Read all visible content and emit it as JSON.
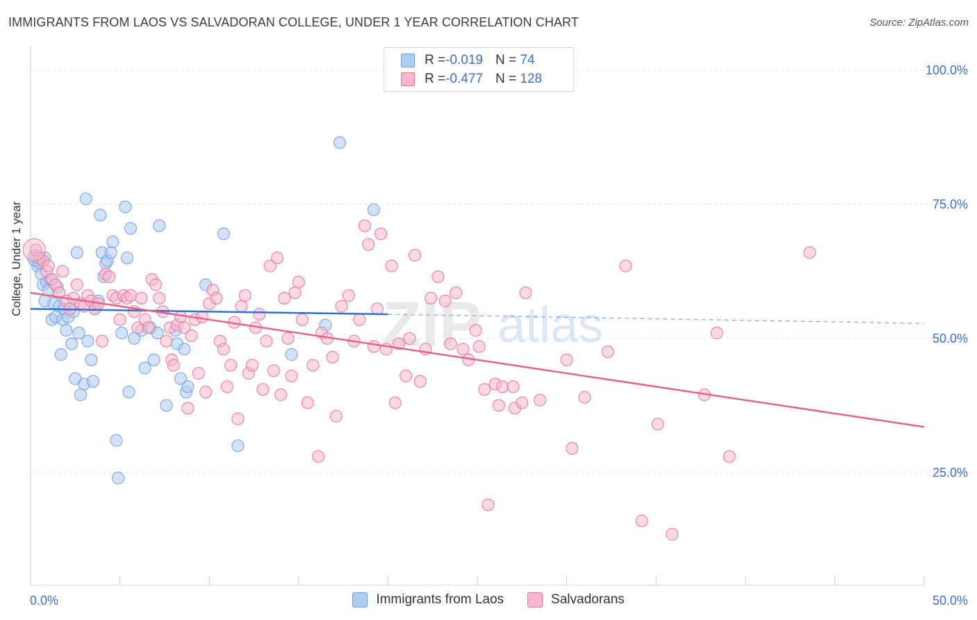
{
  "header": {
    "title": "IMMIGRANTS FROM LAOS VS SALVADORAN COLLEGE, UNDER 1 YEAR CORRELATION CHART",
    "source": "Source: ZipAtlas.com"
  },
  "watermark": {
    "zip": "ZIP",
    "atlas": "atlas"
  },
  "legend": {
    "rows": [
      {
        "r_label": "R = ",
        "r_value": "-0.019",
        "n_label": "N = ",
        "n_value": "74",
        "color": "#aecbf2"
      },
      {
        "r_label": "R = ",
        "r_value": "-0.477",
        "n_label": "N = ",
        "n_value": "128",
        "color": "#f7b8cb"
      }
    ]
  },
  "bottom_legend": [
    {
      "label": "Immigrants from Laos",
      "color": "#aecbf2"
    },
    {
      "label": "Salvadorans",
      "color": "#f7b8cb"
    }
  ],
  "chart_data": {
    "type": "scatter",
    "title": "IMMIGRANTS FROM LAOS VS SALVADORAN COLLEGE, UNDER 1 YEAR CORRELATION CHART",
    "xlabel": "",
    "ylabel": "College, Under 1 year",
    "xlim": [
      0,
      50
    ],
    "ylim": [
      4,
      104
    ],
    "x_tick_labels": [
      "0.0%",
      "50.0%"
    ],
    "y_ticks": [
      25,
      50,
      75,
      100
    ],
    "y_tick_labels": [
      "25.0%",
      "50.0%",
      "75.0%",
      "100.0%"
    ],
    "grid": true,
    "legend_position": "top-center",
    "series": [
      {
        "name": "Immigrants from Laos",
        "color": "#6d9fe0",
        "fill": "#aecbf2",
        "r": -0.019,
        "n": 74,
        "trend": {
          "x0": 0,
          "y0": 55.5,
          "x1": 20,
          "y1": 54.5,
          "dashed_to_x": 50,
          "dashed_to_y": 52.8
        },
        "points": [
          [
            0.3,
            65
          ],
          [
            0.4,
            63.5
          ],
          [
            0.5,
            64
          ],
          [
            0.6,
            62
          ],
          [
            0.7,
            60
          ],
          [
            0.8,
            57
          ],
          [
            0.8,
            65
          ],
          [
            0.9,
            60.5
          ],
          [
            1.0,
            59
          ],
          [
            1.1,
            61
          ],
          [
            1.2,
            53.5
          ],
          [
            1.3,
            56.5
          ],
          [
            1.4,
            54
          ],
          [
            1.5,
            59.5
          ],
          [
            1.6,
            56
          ],
          [
            1.7,
            47
          ],
          [
            1.8,
            53.5
          ],
          [
            1.9,
            55.5
          ],
          [
            2.0,
            51.5
          ],
          [
            2.1,
            54
          ],
          [
            2.3,
            49
          ],
          [
            2.4,
            55
          ],
          [
            2.5,
            42.5
          ],
          [
            2.6,
            66
          ],
          [
            2.7,
            51
          ],
          [
            2.8,
            39.5
          ],
          [
            3.0,
            41.5
          ],
          [
            3.1,
            76
          ],
          [
            3.2,
            49.5
          ],
          [
            3.4,
            46
          ],
          [
            3.5,
            42
          ],
          [
            3.6,
            55.5
          ],
          [
            3.8,
            57
          ],
          [
            3.9,
            73
          ],
          [
            4.0,
            66
          ],
          [
            4.1,
            61.5
          ],
          [
            4.2,
            64
          ],
          [
            4.3,
            64.5
          ],
          [
            4.5,
            66
          ],
          [
            4.6,
            68
          ],
          [
            4.8,
            31
          ],
          [
            4.9,
            24
          ],
          [
            5.1,
            51
          ],
          [
            5.3,
            74.5
          ],
          [
            5.4,
            65
          ],
          [
            5.5,
            40
          ],
          [
            5.6,
            70.5
          ],
          [
            5.8,
            50
          ],
          [
            6.2,
            51.5
          ],
          [
            6.4,
            44.5
          ],
          [
            6.7,
            52
          ],
          [
            6.9,
            46
          ],
          [
            7.1,
            51
          ],
          [
            7.2,
            71
          ],
          [
            7.6,
            37.5
          ],
          [
            8.1,
            51.5
          ],
          [
            8.2,
            49
          ],
          [
            8.4,
            42.5
          ],
          [
            8.6,
            48
          ],
          [
            8.7,
            40
          ],
          [
            8.8,
            41
          ],
          [
            9.8,
            60
          ],
          [
            10.8,
            69.5
          ],
          [
            11.6,
            30
          ],
          [
            14.6,
            47
          ],
          [
            16.5,
            52.5
          ],
          [
            17.3,
            86.5
          ],
          [
            19.2,
            74
          ]
        ]
      },
      {
        "name": "Salvadorans",
        "color": "#e8739c",
        "fill": "#f7b8cb",
        "r": -0.477,
        "n": 128,
        "trend": {
          "x0": 0,
          "y0": 58.5,
          "x1": 50,
          "y1": 33.5
        },
        "points": [
          [
            0.3,
            66.5
          ],
          [
            0.5,
            65
          ],
          [
            0.7,
            64.5
          ],
          [
            0.9,
            62.5
          ],
          [
            1.0,
            63.5
          ],
          [
            1.2,
            61
          ],
          [
            1.4,
            60
          ],
          [
            1.6,
            58.5
          ],
          [
            1.8,
            62.5
          ],
          [
            2.0,
            57
          ],
          [
            2.2,
            55.5
          ],
          [
            2.4,
            57.5
          ],
          [
            2.6,
            60
          ],
          [
            2.8,
            56.5
          ],
          [
            3.0,
            56
          ],
          [
            3.2,
            58
          ],
          [
            3.4,
            57
          ],
          [
            3.6,
            55.5
          ],
          [
            3.8,
            56.5
          ],
          [
            4.0,
            49.5
          ],
          [
            4.2,
            62
          ],
          [
            4.4,
            61.5
          ],
          [
            4.6,
            58
          ],
          [
            4.8,
            57.5
          ],
          [
            5.0,
            53.5
          ],
          [
            5.2,
            58
          ],
          [
            5.4,
            57.5
          ],
          [
            5.6,
            58
          ],
          [
            5.8,
            55
          ],
          [
            6.0,
            52
          ],
          [
            6.2,
            57.5
          ],
          [
            6.4,
            53.5
          ],
          [
            6.6,
            52
          ],
          [
            6.8,
            61
          ],
          [
            7.0,
            60
          ],
          [
            7.2,
            57.5
          ],
          [
            7.4,
            55
          ],
          [
            7.6,
            49.5
          ],
          [
            7.8,
            52
          ],
          [
            7.9,
            46
          ],
          [
            8.0,
            45
          ],
          [
            8.2,
            52.5
          ],
          [
            8.4,
            54
          ],
          [
            8.6,
            52
          ],
          [
            8.8,
            37
          ],
          [
            9.0,
            50.5
          ],
          [
            9.2,
            53.5
          ],
          [
            9.4,
            43.5
          ],
          [
            9.6,
            54
          ],
          [
            9.8,
            40
          ],
          [
            10.0,
            56.5
          ],
          [
            10.2,
            59
          ],
          [
            10.4,
            57.5
          ],
          [
            10.6,
            49.5
          ],
          [
            10.8,
            48
          ],
          [
            11.0,
            41
          ],
          [
            11.2,
            45
          ],
          [
            11.4,
            53
          ],
          [
            11.6,
            35
          ],
          [
            11.8,
            56
          ],
          [
            12.0,
            58
          ],
          [
            12.2,
            43.5
          ],
          [
            12.4,
            45
          ],
          [
            12.6,
            52
          ],
          [
            12.8,
            54.5
          ],
          [
            13.0,
            40.5
          ],
          [
            13.2,
            49.5
          ],
          [
            13.4,
            63.5
          ],
          [
            13.6,
            44
          ],
          [
            13.8,
            65
          ],
          [
            14.0,
            39.5
          ],
          [
            14.2,
            57.5
          ],
          [
            14.4,
            50
          ],
          [
            14.6,
            43
          ],
          [
            14.8,
            58.5
          ],
          [
            15.0,
            60.5
          ],
          [
            15.2,
            53.5
          ],
          [
            15.5,
            38
          ],
          [
            15.8,
            45
          ],
          [
            16.1,
            28
          ],
          [
            16.3,
            51
          ],
          [
            16.6,
            50
          ],
          [
            16.9,
            46.5
          ],
          [
            17.1,
            35.5
          ],
          [
            17.4,
            56
          ],
          [
            17.8,
            58
          ],
          [
            18.1,
            49.5
          ],
          [
            18.4,
            53.5
          ],
          [
            18.7,
            71
          ],
          [
            18.9,
            67.5
          ],
          [
            19.2,
            48.5
          ],
          [
            19.4,
            55.5
          ],
          [
            19.6,
            69.5
          ],
          [
            19.9,
            48
          ],
          [
            20.2,
            63.5
          ],
          [
            20.4,
            38
          ],
          [
            20.6,
            49
          ],
          [
            21.0,
            43
          ],
          [
            21.2,
            50
          ],
          [
            21.5,
            65.5
          ],
          [
            21.8,
            42
          ],
          [
            22.1,
            48
          ],
          [
            22.4,
            57.5
          ],
          [
            22.8,
            61.5
          ],
          [
            23.2,
            57
          ],
          [
            23.5,
            49
          ],
          [
            23.8,
            58.5
          ],
          [
            24.2,
            48
          ],
          [
            24.5,
            46
          ],
          [
            24.9,
            51.5
          ],
          [
            25.1,
            48.5
          ],
          [
            25.4,
            40.5
          ],
          [
            25.6,
            19
          ],
          [
            26.0,
            41.5
          ],
          [
            26.2,
            37.5
          ],
          [
            26.4,
            41
          ],
          [
            27.0,
            41
          ],
          [
            27.1,
            37
          ],
          [
            27.5,
            38
          ],
          [
            27.7,
            58.5
          ],
          [
            28.5,
            38.5
          ],
          [
            30.0,
            46
          ],
          [
            30.3,
            29.5
          ],
          [
            31.0,
            39
          ],
          [
            32.3,
            47.5
          ],
          [
            33.3,
            63.5
          ],
          [
            34.2,
            16
          ],
          [
            35.1,
            34
          ],
          [
            35.9,
            13.5
          ],
          [
            37.7,
            39.5
          ],
          [
            38.4,
            51
          ],
          [
            39.1,
            28
          ],
          [
            43.6,
            66
          ]
        ]
      }
    ]
  }
}
